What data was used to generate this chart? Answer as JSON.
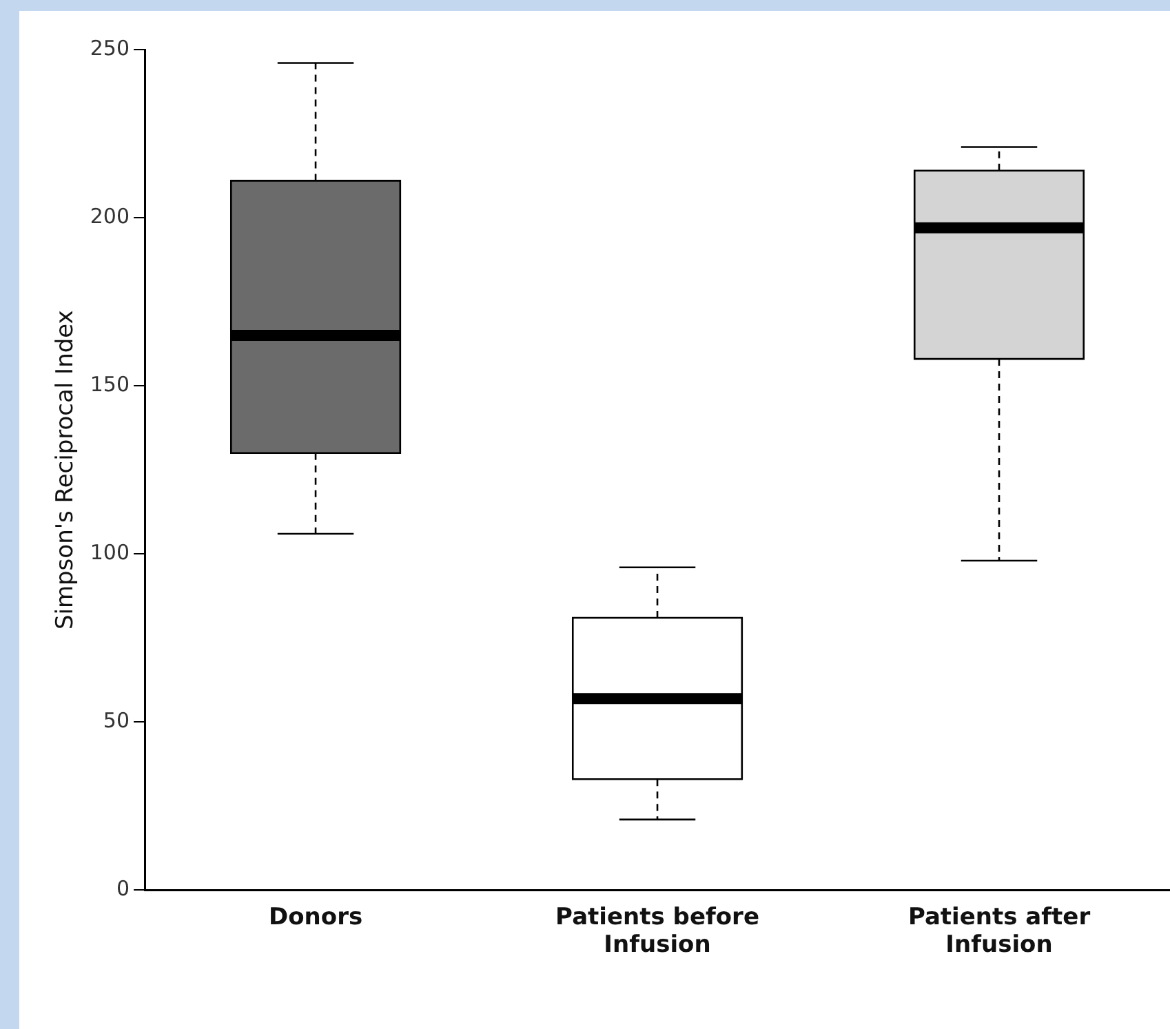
{
  "chart_data": {
    "type": "box",
    "ylabel": "Simpson's Reciprocal Index",
    "categories": [
      "Donors",
      "Patients before Infusion",
      "Patients after Infusion"
    ],
    "colors": [
      "#6b6b6b",
      "#ffffff",
      "#d4d4d4"
    ],
    "boxes": [
      {
        "low": 106,
        "q1": 130,
        "median": 165,
        "q3": 211,
        "high": 246
      },
      {
        "low": 21,
        "q1": 33,
        "median": 57,
        "q3": 81,
        "high": 96
      },
      {
        "low": 98,
        "q1": 158,
        "median": 197,
        "q3": 214,
        "high": 221
      }
    ],
    "ylim": [
      0,
      250
    ],
    "yticks": [
      0,
      50,
      100,
      150,
      200,
      250
    ],
    "grid": false,
    "legend": false
  }
}
